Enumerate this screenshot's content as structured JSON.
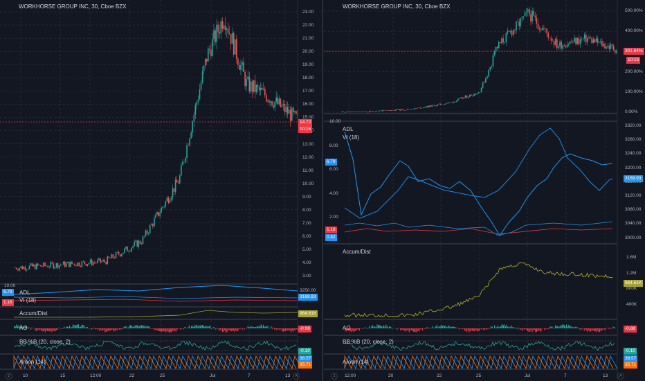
{
  "colors": {
    "bg": "#131722",
    "grid": "#363a45",
    "up": "#26a69a",
    "down": "#ef5350",
    "blue": "#2196f3",
    "orange": "#ff6d00",
    "olive": "#a8a32a",
    "teal": "#26a69a",
    "red": "#f23645"
  },
  "left": {
    "title": "WORKHORSE GROUP INC, 30, Cboe BZX",
    "price_ticks": [
      "23.00",
      "22.00",
      "21.00",
      "20.00",
      "19.00",
      "18.00",
      "17.00",
      "16.00",
      "15.00",
      "14.00",
      "13.00",
      "12.00",
      "11.00",
      "10.00",
      "9.00",
      "8.00",
      "7.00",
      "6.00",
      "5.00",
      "4.00",
      "3.00"
    ],
    "price_tag": "14.72",
    "time_tag": "10:16",
    "adl_label": "ADL",
    "vi_label": "VI (18)",
    "adl_left_tag": "6.79",
    "vi_left_tag": "1.16",
    "adl_top": "10.00",
    "adl_right_tick": "3250.00",
    "adl_right_tag": "3169.93",
    "accum_label": "Accum/Dist",
    "accum_tag": "964.61K",
    "ao_label": "AO",
    "ao_tag": "-0.88",
    "bb_label": "BB %B (20, close, 2)",
    "bb_tag": "-0.10",
    "aroon_label": "Aroon (14)",
    "aroon_tag1": "38.57",
    "aroon_tag2": "35.71",
    "x_ticks": [
      "10",
      "15",
      "12:00",
      "22",
      "25",
      "Jul",
      "7",
      "13"
    ]
  },
  "right": {
    "title": "WORKHORSE GROUP INC, 30, Cboe BZX",
    "pct_ticks": [
      "500.00%",
      "400.00%",
      "300.00%",
      "200.00%",
      "100.00%",
      "0.00%"
    ],
    "pct_tag": "301.64%",
    "time_tag": "10:16",
    "adl_label": "ADL",
    "vi_label": "VI (18)",
    "left_ticks": [
      "10.00",
      "8.00",
      "6.00",
      "4.00",
      "2.00"
    ],
    "left_tag_adl": "6.79",
    "left_tag_vi1": "1.16",
    "left_tag_vi2": "0.82",
    "right_ticks": [
      "3320.00",
      "3280.00",
      "3240.00",
      "3200.00",
      "3160.00",
      "3120.00",
      "3080.00",
      "3040.00",
      "3000.00"
    ],
    "right_tag": "3169.93",
    "accum_label": "Accum/Dist",
    "accum_ticks": [
      "1.6M",
      "1.2M",
      "800K",
      "400K"
    ],
    "accum_tag": "964.61K",
    "ao_label": "AO",
    "ao_tag": "-0.88",
    "bb_label": "BB %B (20, close, 2)",
    "bb_tag": "-0.10",
    "aroon_label": "Aroon (14)",
    "aroon_tag1": "38.57",
    "aroon_tag2": "35.71",
    "x_ticks": [
      "12:00",
      "20",
      "22",
      "25",
      "Jul",
      "7",
      "13"
    ]
  }
}
